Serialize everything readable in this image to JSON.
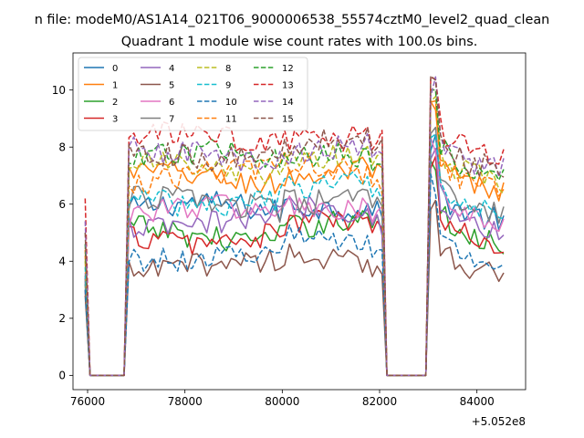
{
  "figure": {
    "suptitle": "n file: modeM0/AS1A14_021T06_9000006538_55574cztM0_level2_quad_clean",
    "title": "Quadrant 1 module wise count rates with 100.0s bins.",
    "x_offset_label": "+5.052e8"
  },
  "chart_data": {
    "type": "line",
    "title": "Quadrant 1 module wise count rates with 100.0s bins.",
    "xlabel": "",
    "ylabel": "",
    "x_offset": 505200000,
    "xlim": [
      75700,
      85000
    ],
    "ylim": [
      -0.5,
      11.3
    ],
    "xticks": [
      76000,
      78000,
      80000,
      82000,
      84000
    ],
    "yticks": [
      0,
      2,
      4,
      6,
      8,
      10
    ],
    "grid": false,
    "legend_position": "top-left",
    "legend_ncol": 4,
    "x_ranges": [
      [
        75950,
        76050
      ],
      [
        76050,
        76800
      ],
      [
        76800,
        82100
      ],
      [
        82100,
        83000
      ],
      [
        83000,
        84600
      ]
    ],
    "series": [
      {
        "name": "0",
        "color": "#1f77b4",
        "style": "solid",
        "level": 5.8,
        "start": 3.5
      },
      {
        "name": "1",
        "color": "#ff7f0e",
        "style": "solid",
        "level": 6.9,
        "start": 4.2
      },
      {
        "name": "2",
        "color": "#2ca02c",
        "style": "solid",
        "level": 5.0,
        "start": 3.2
      },
      {
        "name": "3",
        "color": "#d62728",
        "style": "solid",
        "level": 4.9,
        "start": 3.0
      },
      {
        "name": "4",
        "color": "#9467bd",
        "style": "solid",
        "level": 5.4,
        "start": 3.3
      },
      {
        "name": "5",
        "color": "#8c564b",
        "style": "solid",
        "level": 3.8,
        "start": 2.8
      },
      {
        "name": "6",
        "color": "#e377c2",
        "style": "solid",
        "level": 5.7,
        "start": 3.6
      },
      {
        "name": "7",
        "color": "#7f7f7f",
        "style": "solid",
        "level": 6.0,
        "start": 3.4
      },
      {
        "name": "8",
        "color": "#bcbd22",
        "style": "dashed",
        "level": 7.3,
        "start": 4.0
      },
      {
        "name": "9",
        "color": "#17becf",
        "style": "dashed",
        "level": 6.2,
        "start": 3.8
      },
      {
        "name": "10",
        "color": "#1f77b4",
        "style": "dashed",
        "level": 4.3,
        "start": 3.0
      },
      {
        "name": "11",
        "color": "#ff7f0e",
        "style": "dashed",
        "level": 7.0,
        "start": 4.4
      },
      {
        "name": "12",
        "color": "#2ca02c",
        "style": "dashed",
        "level": 7.6,
        "start": 4.6
      },
      {
        "name": "13",
        "color": "#d62728",
        "style": "dashed",
        "level": 8.2,
        "start": 6.2
      },
      {
        "name": "14",
        "color": "#9467bd",
        "style": "dashed",
        "level": 7.7,
        "start": 5.4
      },
      {
        "name": "15",
        "color": "#8c564b",
        "style": "dashed",
        "level": 7.8,
        "start": 5.0
      }
    ]
  }
}
